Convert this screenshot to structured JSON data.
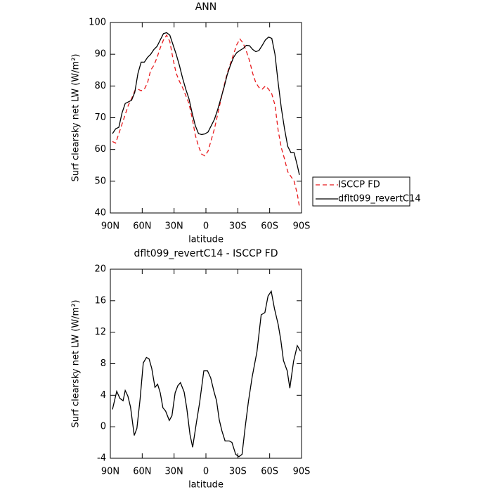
{
  "chart_data": [
    {
      "type": "line",
      "title": "ANN",
      "xlabel": "latitude",
      "ylabel": "Surf clearsky net LW (W/m²)",
      "x": [
        88,
        85,
        82,
        79,
        76,
        73,
        70,
        67,
        64,
        61,
        58,
        55,
        52,
        49,
        46,
        43,
        40,
        37,
        34,
        31,
        28,
        25,
        22,
        19,
        16,
        13,
        10,
        7,
        4,
        1,
        -2,
        -5,
        -8,
        -11,
        -14,
        -17,
        -20,
        -23,
        -26,
        -29,
        -32,
        -35,
        -38,
        -41,
        -44,
        -47,
        -50,
        -53,
        -56,
        -59,
        -62,
        -65,
        -68,
        -71,
        -74,
        -77,
        -80,
        -83,
        -86,
        -88
      ],
      "series": [
        {
          "name": "ISCCP FD",
          "color": "#e8191c",
          "line_style": "dashed",
          "values": [
            62.5,
            62,
            65,
            68,
            71,
            74,
            76,
            78.5,
            79,
            78.5,
            79,
            81,
            85,
            86.5,
            89,
            92,
            94.5,
            96,
            94,
            88.5,
            84,
            81.5,
            79.5,
            77,
            74.5,
            70,
            64.5,
            61,
            58.5,
            58,
            59.5,
            63,
            66.5,
            71,
            75.5,
            80,
            84,
            87,
            90,
            93,
            94.8,
            93.5,
            91,
            88,
            84,
            81,
            79.5,
            79,
            80,
            79,
            77.5,
            74,
            66,
            60.5,
            57,
            53,
            51.5,
            50,
            46,
            42
          ]
        },
        {
          "name": "dflt099_revertC14",
          "color": "#000000",
          "line_style": "solid",
          "values": [
            65,
            66.5,
            67,
            71.5,
            74.5,
            75,
            75.5,
            78,
            84,
            87.5,
            87.5,
            89,
            90,
            91.5,
            92.5,
            94.5,
            96.5,
            96.8,
            96,
            93,
            90,
            86.5,
            82.5,
            79,
            76,
            71.5,
            67.5,
            65,
            64.7,
            64.9,
            65.5,
            67.5,
            69.5,
            72.5,
            76,
            79.5,
            83.5,
            86.5,
            89,
            90.5,
            91.2,
            91.8,
            92.8,
            92.7,
            91.5,
            90.8,
            91.2,
            92.8,
            94.5,
            95.4,
            95,
            90,
            81,
            73,
            66.5,
            61,
            59,
            59,
            55,
            52
          ]
        }
      ],
      "xlim": [
        90,
        -90
      ],
      "xticks": [
        {
          "value": 90,
          "label": "90N"
        },
        {
          "value": 60,
          "label": "60N"
        },
        {
          "value": 30,
          "label": "30N"
        },
        0,
        {
          "value": -30,
          "label": "30S"
        },
        {
          "value": -60,
          "label": "60S"
        },
        {
          "value": -90,
          "label": "90S"
        }
      ],
      "ylim": [
        40,
        100
      ],
      "yticks": [
        40,
        50,
        60,
        70,
        80,
        90,
        100
      ],
      "legend": "right"
    },
    {
      "type": "line",
      "title": "dflt099_revertC14 - ISCCP FD",
      "xlabel": "latitude",
      "ylabel": "Surf clearsky net LW (W/m²)",
      "x": [
        88,
        84,
        81,
        78,
        76,
        73.5,
        71,
        67.5,
        65,
        62,
        59,
        56,
        53.5,
        51,
        48,
        45.5,
        43,
        40.5,
        38,
        34.5,
        32,
        29,
        26.5,
        24,
        20.5,
        18,
        15,
        12.5,
        9,
        6,
        2,
        -1.5,
        -4.5,
        -7.5,
        -10,
        -12.5,
        -15,
        -18,
        -22,
        -24.5,
        -28,
        -31,
        -34,
        -37,
        -40,
        -43.5,
        -48,
        -52,
        -55.5,
        -58.5,
        -61.5,
        -64.5,
        -68,
        -70.5,
        -73,
        -76.5,
        -79,
        -82.5,
        -86,
        -89
      ],
      "values": [
        2.2,
        4.5,
        3.6,
        3.3,
        4.6,
        3.9,
        2.5,
        -1.1,
        -0.2,
        3.5,
        8.1,
        8.8,
        8.6,
        7.4,
        5.0,
        5.4,
        4.3,
        2.4,
        2.0,
        0.8,
        1.4,
        4.3,
        5.2,
        5.6,
        4.4,
        2.3,
        -1.0,
        -2.6,
        0.5,
        3.0,
        7.1,
        7.1,
        6.2,
        4.5,
        3.3,
        0.9,
        -0.5,
        -1.8,
        -1.8,
        -2.0,
        -3.5,
        -3.8,
        -3.5,
        0,
        3.2,
        6.3,
        9.5,
        14.2,
        14.5,
        16.6,
        17.2,
        15.0,
        13.0,
        11.0,
        8.4,
        7.1,
        4.9,
        8.3,
        10.3,
        9.6
      ],
      "color": "#000000",
      "xlim": [
        90,
        -90
      ],
      "xticks": [
        {
          "value": 90,
          "label": "90N"
        },
        {
          "value": 60,
          "label": "60N"
        },
        {
          "value": 30,
          "label": "30N"
        },
        0,
        {
          "value": -30,
          "label": "30S"
        },
        {
          "value": -60,
          "label": "60S"
        },
        {
          "value": -90,
          "label": "90S"
        }
      ],
      "ylim": [
        -4,
        20
      ],
      "yticks": [
        -4,
        0,
        4,
        8,
        12,
        16,
        20
      ]
    }
  ]
}
